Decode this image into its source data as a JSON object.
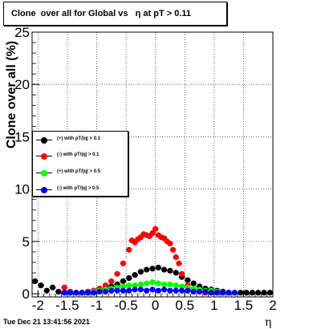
{
  "title": "Clone  over all for Global vs   η at pT > 0.11",
  "ylabel": "Clone  over all (%)",
  "xlabel": "η",
  "timestamp": "Tue Dec 21 13:41:56 2021",
  "legend": [
    {
      "label": "(+) with pT/|q| > 0.1",
      "color": "#000000"
    },
    {
      "label": "(-) with pT/|q| > 0.1",
      "color": "#ff0000"
    },
    {
      "label": "(+) with pT/|q| > 0.5",
      "color": "#00ff00"
    },
    {
      "label": "(-) with pT/|q| > 0.5",
      "color": "#0000ff"
    }
  ],
  "chart_data": {
    "type": "scatter",
    "title": "Clone  over all for Global vs   η at pT > 0.11",
    "xlabel": "η",
    "ylabel": "Clone  over all (%)",
    "xlim": [
      -2.1,
      2.0
    ],
    "ylim": [
      -0.3,
      25
    ],
    "xticks": [
      -2,
      -1.5,
      -1,
      -0.5,
      0,
      0.5,
      1,
      1.5,
      2
    ],
    "xtick_labels": [
      "-2",
      "-1.5",
      "-1",
      "-0.5",
      "0",
      "0.5",
      "1",
      "1.5",
      "2"
    ],
    "yticks": [
      0,
      5,
      10,
      15,
      20,
      25
    ],
    "ytick_labels": [
      "0",
      "5",
      "10",
      "15",
      "20",
      "25"
    ],
    "grid": true,
    "legend_position": "left-middle",
    "series": [
      {
        "name": "(+) with pT/|q| > 0.1",
        "color": "#000000",
        "x": [
          -2.05,
          -1.95,
          -1.85,
          -1.75,
          -1.65,
          -1.55,
          -1.45,
          -1.35,
          -1.25,
          -1.15,
          -1.05,
          -0.95,
          -0.85,
          -0.75,
          -0.65,
          -0.55,
          -0.45,
          -0.35,
          -0.25,
          -0.15,
          -0.05,
          0.05,
          0.15,
          0.25,
          0.35,
          0.45,
          0.55,
          0.65,
          0.75,
          0.85,
          0.95,
          1.05,
          1.15,
          1.25,
          1.35,
          1.45,
          1.55,
          1.65,
          1.75,
          1.85,
          1.95
        ],
        "y": [
          1.2,
          0.8,
          0.3,
          0.6,
          0.2,
          0.1,
          0.1,
          0.1,
          0.1,
          0.2,
          0.3,
          0.4,
          0.5,
          0.7,
          0.9,
          1.2,
          1.5,
          1.8,
          2.1,
          2.3,
          2.4,
          2.5,
          2.3,
          2.2,
          2.0,
          1.6,
          1.3,
          1.0,
          0.7,
          0.5,
          0.4,
          0.3,
          0.2,
          0.1,
          0.1,
          0.1,
          0.1,
          0.1,
          0.1,
          0.1,
          0.1
        ]
      },
      {
        "name": "(-) with pT/|q| > 0.1",
        "color": "#ff0000",
        "x": [
          -1.55,
          -1.45,
          -1.35,
          -1.25,
          -1.15,
          -1.05,
          -0.95,
          -0.85,
          -0.75,
          -0.65,
          -0.55,
          -0.45,
          -0.4,
          -0.35,
          -0.3,
          -0.25,
          -0.2,
          -0.15,
          -0.1,
          -0.05,
          0.0,
          0.05,
          0.1,
          0.15,
          0.2,
          0.25,
          0.3,
          0.35,
          0.4,
          0.45,
          0.55,
          0.65,
          0.75,
          0.85,
          0.95,
          1.05,
          1.15,
          1.25,
          1.35
        ],
        "y": [
          0.6,
          0.2,
          0.1,
          0.1,
          0.2,
          0.3,
          0.5,
          0.8,
          1.2,
          1.9,
          2.9,
          4.2,
          5.1,
          4.9,
          5.2,
          5.4,
          5.7,
          5.6,
          5.5,
          5.8,
          6.2,
          5.6,
          5.4,
          5.3,
          5.0,
          4.8,
          4.2,
          3.5,
          2.9,
          1.9,
          0.8,
          0.4,
          0.2,
          0.1,
          0.1,
          0.1,
          0.1,
          0.1,
          0.1
        ]
      },
      {
        "name": "(+) with pT/|q| > 0.5",
        "color": "#00ff00",
        "x": [
          -1.25,
          -1.15,
          -1.05,
          -0.95,
          -0.85,
          -0.75,
          -0.65,
          -0.55,
          -0.45,
          -0.35,
          -0.25,
          -0.15,
          -0.05,
          0.05,
          0.15,
          0.25,
          0.35,
          0.45,
          0.55,
          0.65,
          0.75,
          0.85,
          0.95,
          1.05,
          1.15,
          1.25,
          1.35
        ],
        "y": [
          0.1,
          0.1,
          0.2,
          0.3,
          0.4,
          0.5,
          0.6,
          0.7,
          0.8,
          0.8,
          0.9,
          1.0,
          1.1,
          1.0,
          0.9,
          0.9,
          0.8,
          0.7,
          0.6,
          0.5,
          0.4,
          0.3,
          0.3,
          0.2,
          0.1,
          0.1,
          0.1
        ]
      },
      {
        "name": "(-) with pT/|q| > 0.5",
        "color": "#0000ff",
        "x": [
          -1.55,
          -1.45,
          -1.35,
          -1.25,
          -1.15,
          -1.05,
          -0.95,
          -0.85,
          -0.75,
          -0.65,
          -0.55,
          -0.45,
          -0.35,
          -0.25,
          -0.15,
          -0.05,
          0.05,
          0.15,
          0.25,
          0.35,
          0.45,
          0.55,
          0.65,
          0.75,
          0.85,
          0.95,
          1.05,
          1.15,
          1.25,
          1.35
        ],
        "y": [
          0.1,
          0.1,
          0.1,
          0.1,
          0.1,
          0.1,
          0.2,
          0.2,
          0.3,
          0.3,
          0.3,
          0.3,
          0.4,
          0.4,
          0.3,
          0.4,
          0.3,
          0.4,
          0.3,
          0.3,
          0.3,
          0.3,
          0.2,
          0.2,
          0.2,
          0.1,
          0.1,
          0.1,
          0.1,
          0.1
        ]
      }
    ]
  }
}
